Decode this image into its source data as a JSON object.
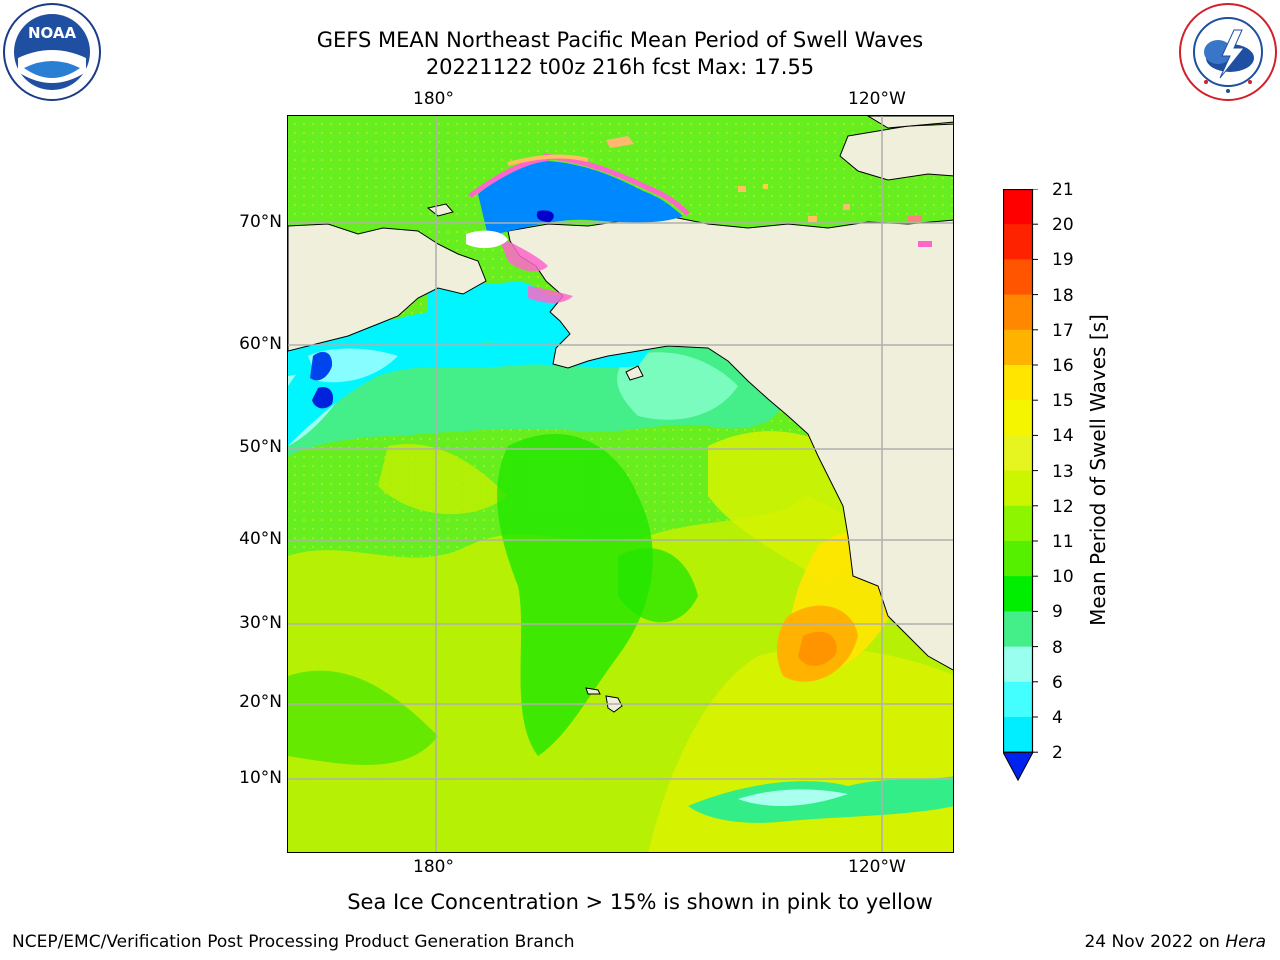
{
  "header": {
    "title_line1": "GEFS MEAN Northeast Pacific Mean Period of Swell Waves",
    "title_line2": "20221122 t00z 216h fcst   Max: 17.55"
  },
  "logos": {
    "noaa": {
      "text": "NOAA",
      "ring_text": "NATIONAL OCEANIC AND ATMOSPHERIC ADMINISTRATION · U.S. DEPARTMENT OF COMMERCE"
    },
    "nws": {
      "ring_text": "NATIONAL WEATHER SERVICE"
    }
  },
  "map": {
    "lon_labels_top": [
      "180°",
      "120°W"
    ],
    "lon_labels_bottom": [
      "180°",
      "120°W"
    ],
    "lat_labels": [
      "70°N",
      "60°N",
      "50°N",
      "40°N",
      "30°N",
      "20°N",
      "10°N"
    ]
  },
  "colorbar": {
    "label": "Mean Period of Swell Waves [s]",
    "ticks": [
      "21",
      "20",
      "19",
      "18",
      "17",
      "16",
      "15",
      "14",
      "13",
      "12",
      "11",
      "10",
      "9",
      "8",
      "6",
      "4",
      "2"
    ],
    "colors": [
      "#ff0000",
      "#ff2200",
      "#ff5500",
      "#ff8800",
      "#ffb300",
      "#ffe500",
      "#f5f500",
      "#e6f51f",
      "#ccf500",
      "#8ef500",
      "#55f000",
      "#00ee00",
      "#44ee88",
      "#99ffee",
      "#44ffff",
      "#00eeff",
      "#0077ff"
    ],
    "extend_color": "#0022ee",
    "max_value": 17.55
  },
  "footer": {
    "note": "Sea Ice Concentration > 15% is shown in pink to yellow",
    "left": "NCEP/EMC/Verification Post Processing Product Generation Branch",
    "right_date": "24 Nov 2022 on ",
    "right_host": "Hera"
  }
}
